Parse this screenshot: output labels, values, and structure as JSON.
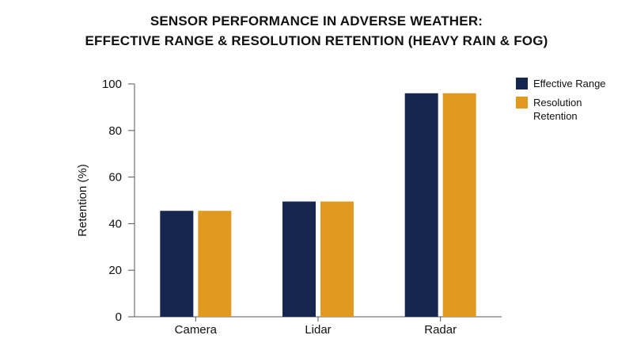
{
  "chart_data": {
    "type": "bar",
    "title_lines": [
      "SENSOR PERFORMANCE IN ADVERSE WEATHER:",
      "EFFECTIVE RANGE & RESOLUTION RETENTION (HEAVY RAIN & FOG)"
    ],
    "ylabel": "Retention (%)",
    "categories": [
      "Camera",
      "Lidar",
      "Radar"
    ],
    "series": [
      {
        "name": "Effective Range",
        "color": "#15264f",
        "values": [
          45.5,
          49.5,
          96
        ]
      },
      {
        "name": "Resolution Retention",
        "color": "#e09a1f",
        "values": [
          45.5,
          49.5,
          96
        ]
      }
    ],
    "ylim": [
      0,
      100
    ],
    "yticks": [
      "0",
      "20",
      "40",
      "60",
      "80",
      "100"
    ],
    "grid": false,
    "legend_position": "top-right"
  }
}
